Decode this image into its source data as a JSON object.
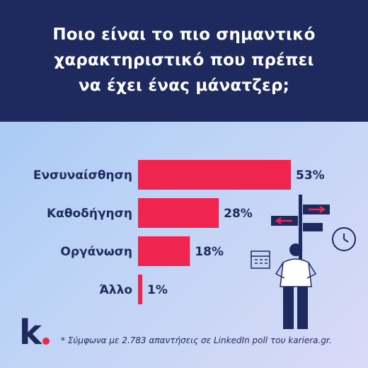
{
  "title_lines": [
    "Ποιο είναι το πιο σημαντικό",
    "χαρακτηριστικό που πρέπει",
    "να έχει ένας μάνατζερ;"
  ],
  "footnote": "* Σύμφωνα με 2.783 απαντήσεις σε LinkedIn poll του kariera.gr.",
  "logo": "k.",
  "colors": {
    "header_bg": "#1e2a5e",
    "bar": "#f0254f",
    "text_dark": "#1e2a5e",
    "logo_dot": "#f0254f"
  },
  "chart_data": {
    "type": "bar",
    "orientation": "horizontal",
    "categories": [
      "Ενσυναίσθηση",
      "Καθοδήγηση",
      "Οργάνωση",
      "Άλλο"
    ],
    "values": [
      53,
      28,
      18,
      1
    ],
    "value_labels": [
      "53%",
      "28%",
      "18%",
      "1%"
    ],
    "unit": "%",
    "xlim": [
      0,
      53
    ],
    "grid": false,
    "legend": "none"
  }
}
